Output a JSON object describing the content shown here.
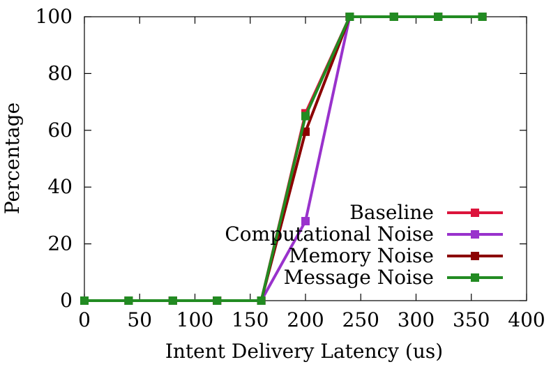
{
  "chart_data": {
    "type": "line",
    "title": "",
    "xlabel": "Intent Delivery Latency (us)",
    "ylabel": "Percentage",
    "xlim": [
      0,
      400
    ],
    "ylim": [
      0,
      100
    ],
    "xticks": [
      "0",
      "50",
      "100",
      "150",
      "200",
      "250",
      "300",
      "350",
      "400"
    ],
    "yticks": [
      "0",
      "20",
      "40",
      "60",
      "80",
      "100"
    ],
    "grid": false,
    "legend_position": "bottom-right",
    "x": [
      0,
      40,
      80,
      120,
      160,
      200,
      240,
      280,
      320,
      360
    ],
    "series": [
      {
        "name": "Baseline",
        "color": "#dc143c",
        "values": [
          0,
          0,
          0,
          0,
          0,
          66,
          100,
          100,
          100,
          100
        ]
      },
      {
        "name": "Computational Noise",
        "color": "#9932cc",
        "values": [
          0,
          0,
          0,
          0,
          0,
          28,
          100,
          100,
          100,
          100
        ]
      },
      {
        "name": "Memory Noise",
        "color": "#8b0000",
        "values": [
          0,
          0,
          0,
          0,
          0,
          59.5,
          100,
          100,
          100,
          100
        ]
      },
      {
        "name": "Message Noise",
        "color": "#228b22",
        "values": [
          0,
          0,
          0,
          0,
          0,
          65,
          100,
          100,
          100,
          100
        ]
      }
    ]
  }
}
